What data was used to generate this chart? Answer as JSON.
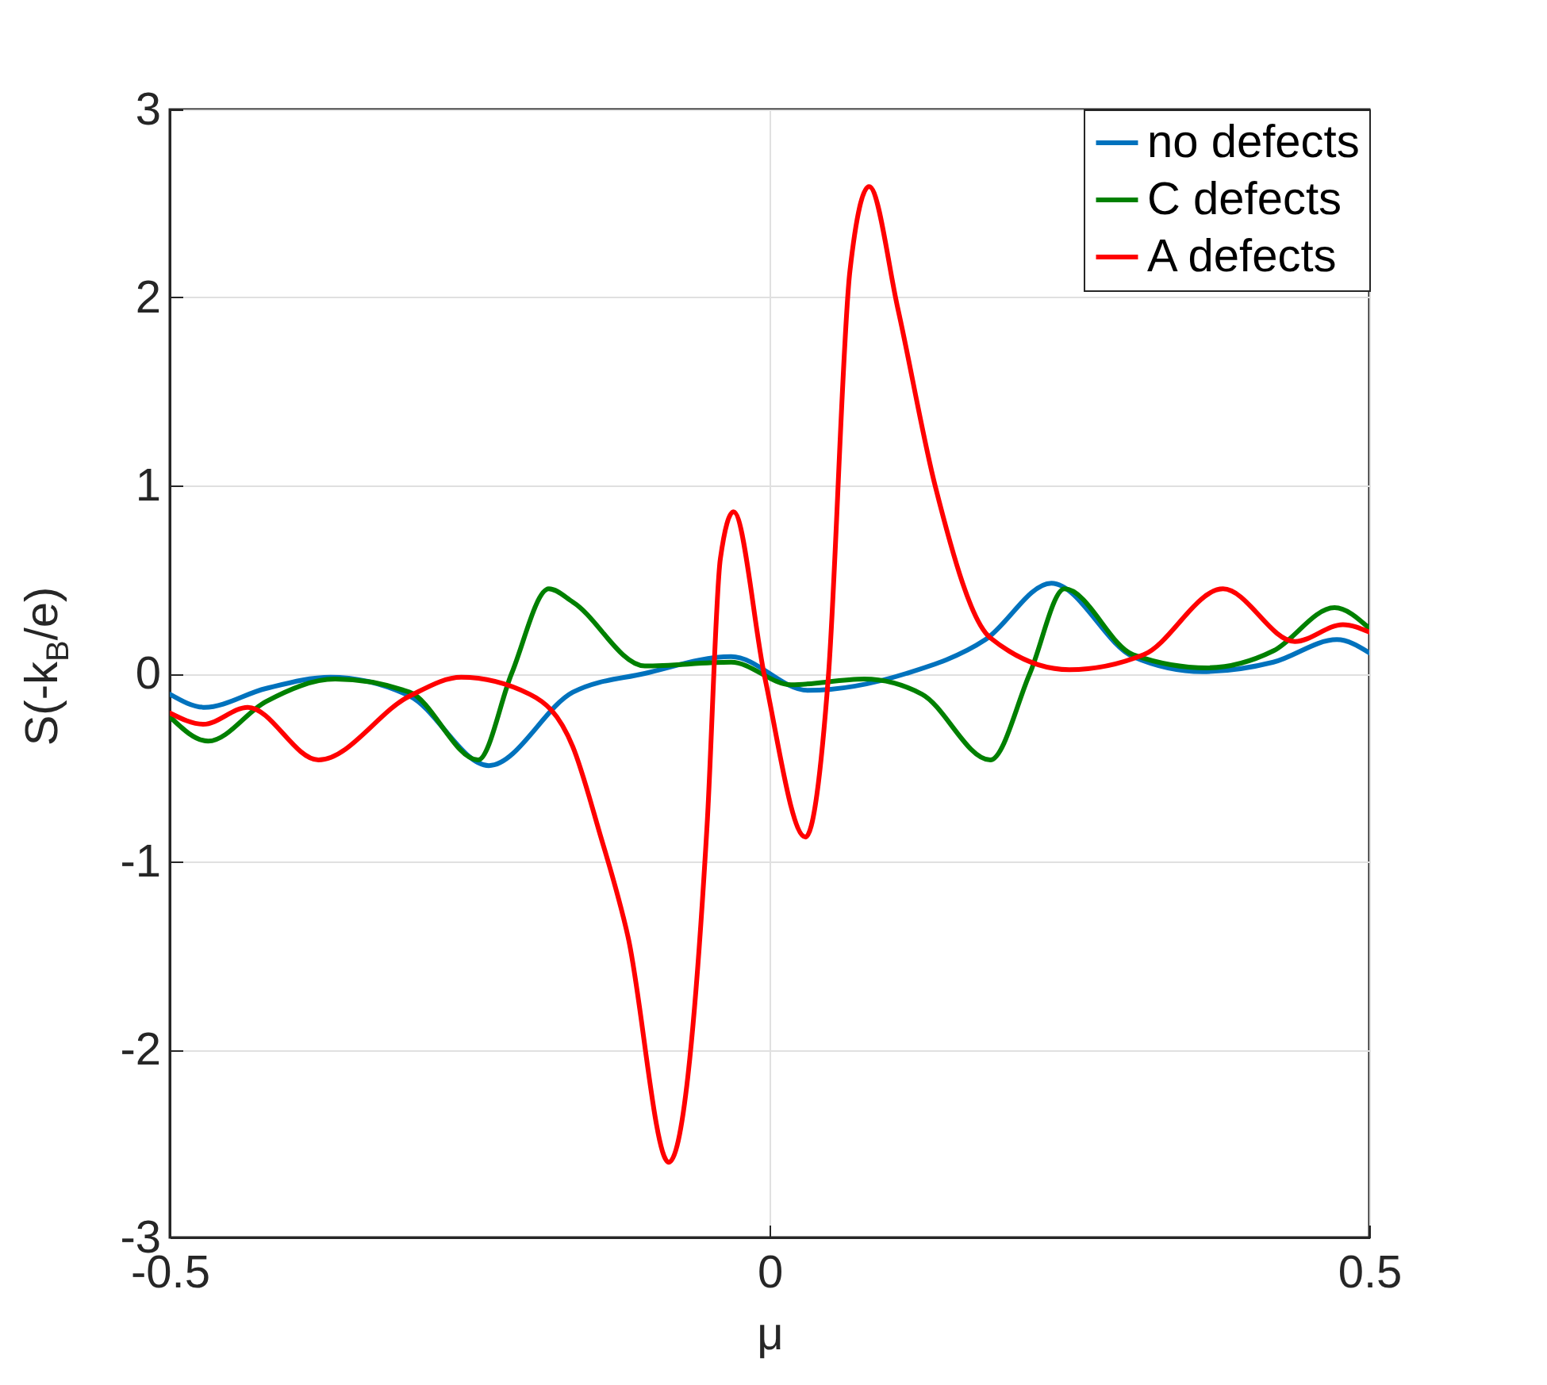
{
  "chart_data": {
    "type": "line",
    "xlabel": "μ",
    "ylabel": "S(-k$_{B}$/e)",
    "xlim": [
      -0.5,
      0.5
    ],
    "xticks": [
      -0.5,
      0,
      0.5
    ],
    "ylim": [
      -3,
      3
    ],
    "yticks": [
      -3,
      -2,
      -1,
      0,
      1,
      2,
      3
    ],
    "grid": true,
    "legend": "top right",
    "series": [
      {
        "name": "no defects",
        "color": "#0072bd",
        "x": [
          -0.5,
          -0.471,
          -0.42,
          -0.366,
          -0.3,
          -0.234,
          -0.164,
          -0.104,
          -0.032,
          0.032,
          0.114,
          0.18,
          0.235,
          0.303,
          0.361,
          0.42,
          0.473,
          0.5
        ],
        "values": [
          -0.11,
          -0.18,
          -0.08,
          -0.02,
          -0.12,
          -0.49,
          -0.1,
          0,
          0.09,
          -0.09,
          0,
          0.18,
          0.48,
          0.09,
          0.01,
          0.06,
          0.18,
          0.11
        ]
      },
      {
        "name": "C defects",
        "color": "#008000",
        "x": [
          -0.5,
          -0.468,
          -0.42,
          -0.362,
          -0.3,
          -0.243,
          -0.215,
          -0.184,
          -0.164,
          -0.104,
          -0.032,
          0.018,
          0.079,
          0.127,
          0.184,
          0.217,
          0.246,
          0.303,
          0.365,
          0.42,
          0.471,
          0.5
        ],
        "values": [
          -0.23,
          -0.36,
          -0.15,
          -0.03,
          -0.1,
          -0.46,
          0,
          0.45,
          0.38,
          0.04,
          0.06,
          -0.06,
          -0.03,
          -0.11,
          -0.46,
          0,
          0.45,
          0.1,
          0.03,
          0.12,
          0.35,
          0.24
        ]
      },
      {
        "name": "A defects",
        "color": "#ff0000",
        "x": [
          -0.5,
          -0.472,
          -0.435,
          -0.376,
          -0.3,
          -0.257,
          -0.2,
          -0.164,
          -0.142,
          -0.118,
          -0.084,
          -0.052,
          -0.041,
          -0.03,
          -0.004,
          0.03,
          0.049,
          0.067,
          0.083,
          0.107,
          0.138,
          0.184,
          0.25,
          0.312,
          0.378,
          0.438,
          0.478,
          0.5
        ],
        "values": [
          -0.21,
          -0.27,
          -0.18,
          -0.46,
          -0.12,
          -0.02,
          -0.11,
          -0.39,
          -0.84,
          -1.4,
          -2.6,
          -0.8,
          0.61,
          0.86,
          -0.02,
          -0.87,
          -0.02,
          2.14,
          2.59,
          1.94,
          1.0,
          0.19,
          0.02,
          0.1,
          0.45,
          0.17,
          0.26,
          0.22
        ]
      }
    ]
  }
}
